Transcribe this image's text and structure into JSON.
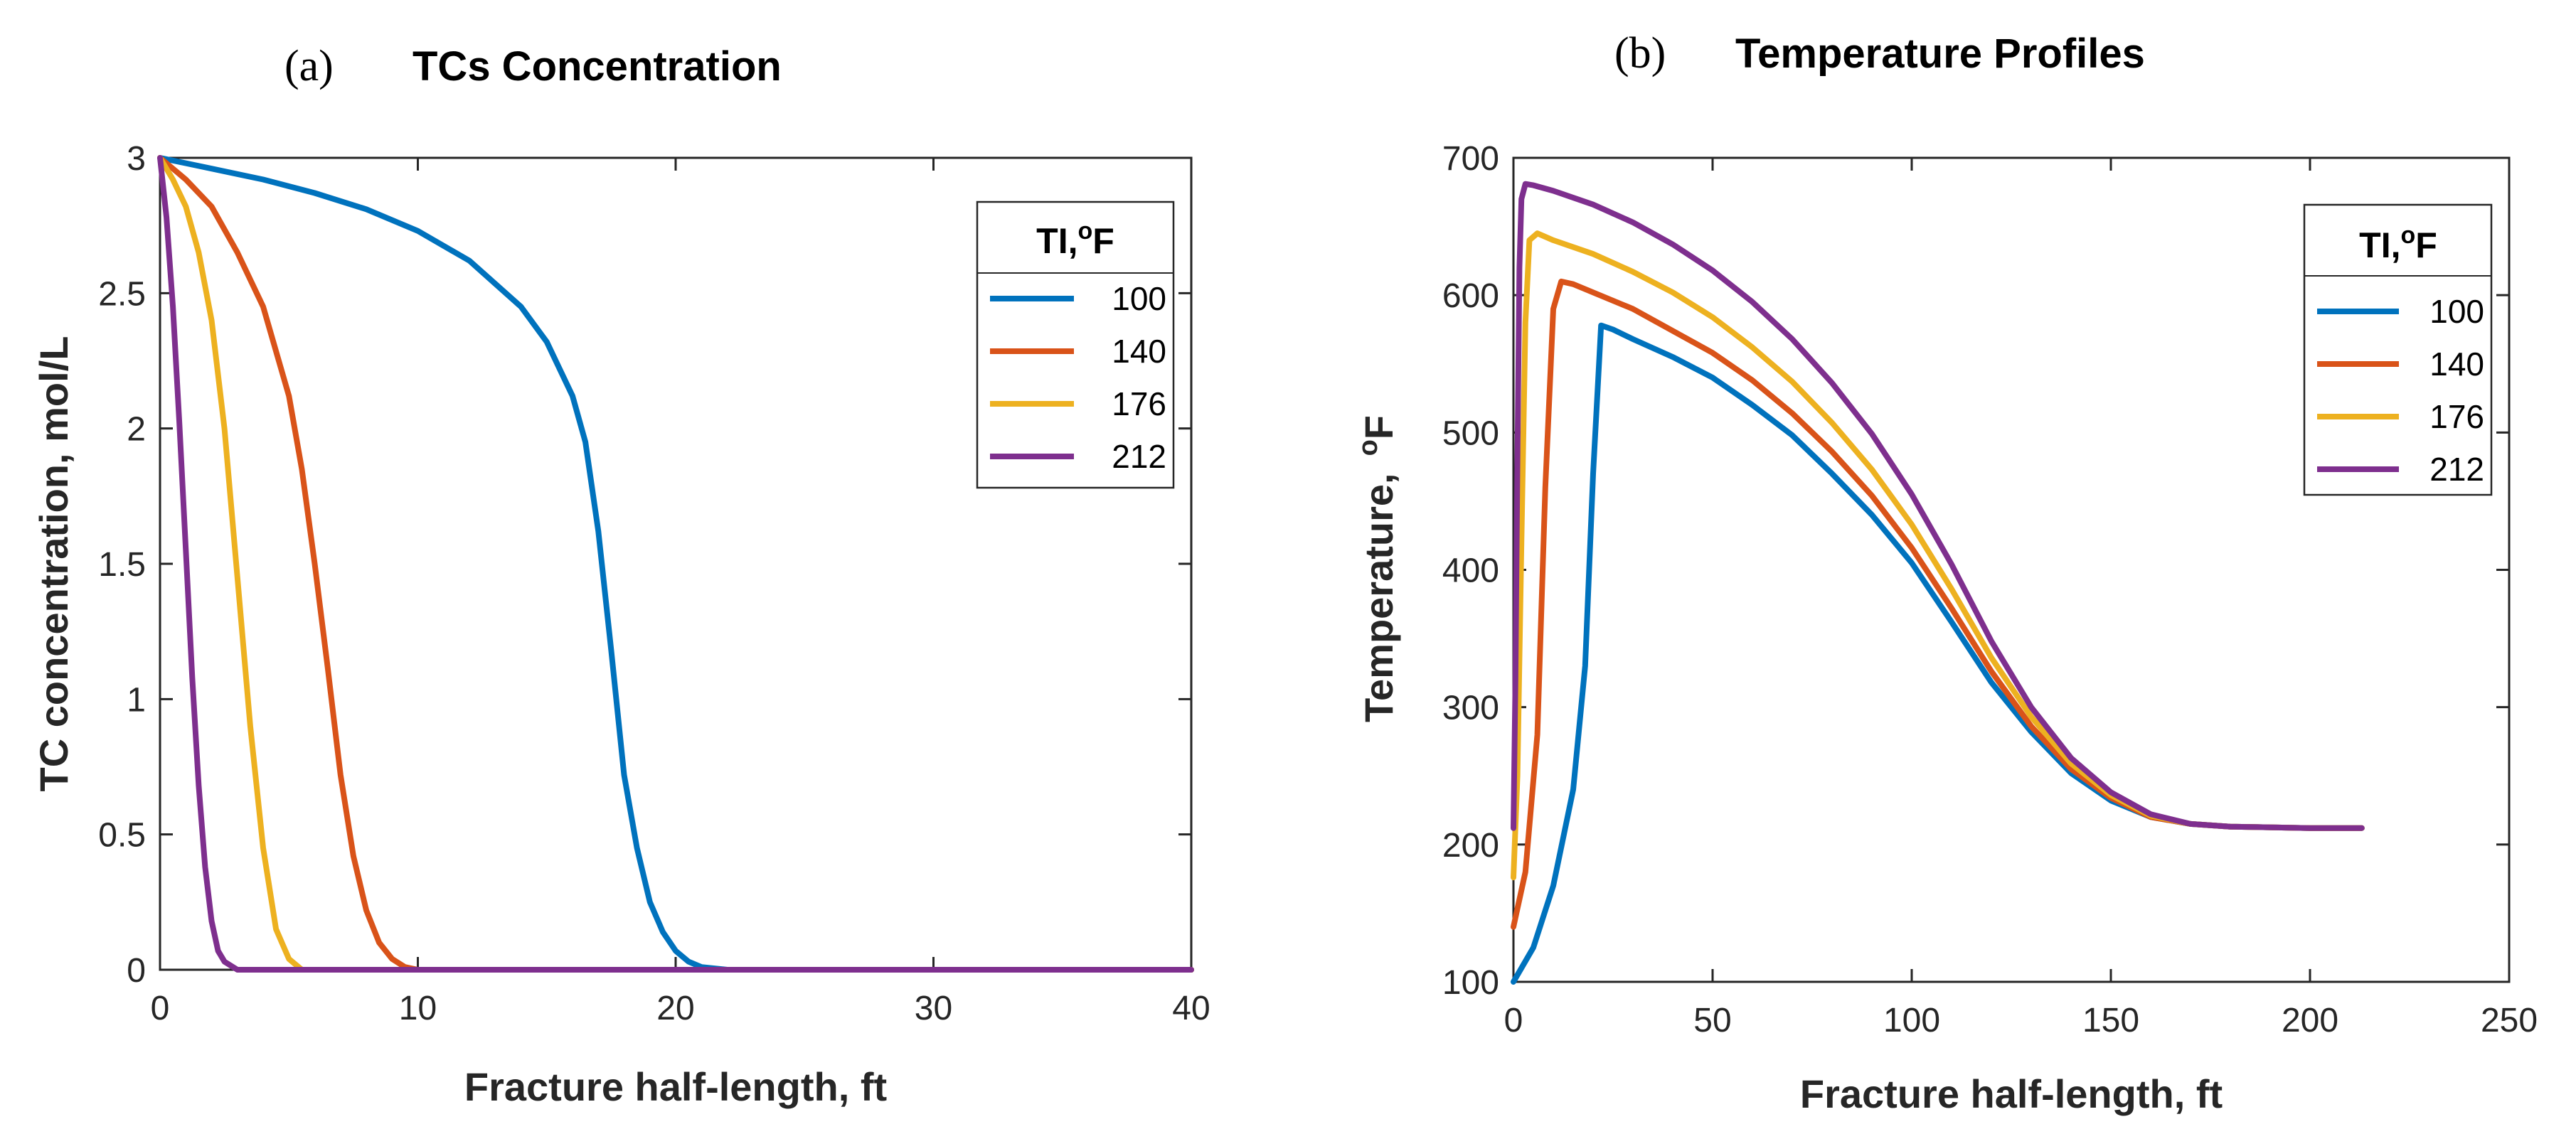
{
  "chart_data": [
    {
      "panel": "(a)",
      "type": "line",
      "title": "TCs Concentration",
      "xlabel": "Fracture half-length, ft",
      "ylabel": "TC concentration, mol/L",
      "xlim": [
        0,
        40
      ],
      "ylim": [
        0,
        3
      ],
      "xticks": [
        0,
        10,
        20,
        30,
        40
      ],
      "yticks": [
        0,
        0.5,
        1,
        1.5,
        2,
        2.5,
        3
      ],
      "legend": {
        "title": "TI,",
        "title_sup": "o",
        "title_unit": "F",
        "placement": "top-right"
      },
      "series": [
        {
          "name": "100",
          "color": "#0072BD",
          "x": [
            0,
            2,
            4,
            6,
            8,
            10,
            12,
            14,
            15,
            16,
            16.5,
            17,
            17.5,
            18,
            18.5,
            19,
            19.5,
            20,
            20.5,
            21,
            22,
            40
          ],
          "y": [
            3,
            2.96,
            2.92,
            2.87,
            2.81,
            2.73,
            2.62,
            2.45,
            2.32,
            2.12,
            1.95,
            1.62,
            1.18,
            0.72,
            0.45,
            0.25,
            0.14,
            0.07,
            0.03,
            0.01,
            0,
            0
          ]
        },
        {
          "name": "140",
          "color": "#D95319",
          "x": [
            0,
            1,
            2,
            3,
            4,
            5,
            5.5,
            6,
            6.5,
            7,
            7.5,
            8,
            8.5,
            9,
            9.5,
            10,
            40
          ],
          "y": [
            3,
            2.92,
            2.82,
            2.65,
            2.45,
            2.12,
            1.85,
            1.5,
            1.12,
            0.72,
            0.42,
            0.22,
            0.1,
            0.04,
            0.01,
            0,
            0
          ]
        },
        {
          "name": "176",
          "color": "#EDB120",
          "x": [
            0,
            0.5,
            1,
            1.5,
            2,
            2.5,
            3,
            3.5,
            4,
            4.5,
            5,
            5.5,
            40
          ],
          "y": [
            3,
            2.92,
            2.82,
            2.65,
            2.4,
            2.0,
            1.45,
            0.9,
            0.45,
            0.15,
            0.04,
            0,
            0
          ]
        },
        {
          "name": "212",
          "color": "#7E2F8E",
          "x": [
            0,
            0.25,
            0.5,
            0.75,
            1,
            1.25,
            1.5,
            1.75,
            2,
            2.25,
            2.5,
            3,
            40
          ],
          "y": [
            3,
            2.78,
            2.45,
            2.02,
            1.55,
            1.08,
            0.68,
            0.38,
            0.18,
            0.07,
            0.03,
            0,
            0
          ]
        }
      ]
    },
    {
      "panel": "(b)",
      "type": "line",
      "title": "Temperature Profiles",
      "xlabel": "Fracture half-length, ft",
      "ylabel": "Temperature,",
      "ylabel_sup": "o",
      "ylabel_unit": "F",
      "xlim": [
        0,
        250
      ],
      "ylim": [
        100,
        700
      ],
      "xticks": [
        0,
        50,
        100,
        150,
        200,
        250
      ],
      "yticks": [
        100,
        200,
        300,
        400,
        500,
        600,
        700
      ],
      "legend": {
        "title": "TI,",
        "title_sup": "o",
        "title_unit": "F",
        "placement": "top-right"
      },
      "series": [
        {
          "name": "100",
          "color": "#0072BD",
          "x": [
            0,
            5,
            10,
            15,
            18,
            20,
            22,
            25,
            30,
            40,
            50,
            60,
            70,
            80,
            90,
            100,
            110,
            120,
            130,
            140,
            150,
            160,
            170,
            180,
            200,
            213
          ],
          "y": [
            100,
            125,
            170,
            240,
            330,
            470,
            578,
            575,
            568,
            555,
            540,
            520,
            498,
            470,
            440,
            405,
            362,
            318,
            282,
            252,
            232,
            220,
            215,
            213,
            212,
            212
          ]
        },
        {
          "name": "140",
          "color": "#D95319",
          "x": [
            0,
            3,
            6,
            8,
            10,
            12,
            15,
            20,
            30,
            40,
            50,
            60,
            70,
            80,
            90,
            100,
            110,
            120,
            130,
            140,
            150,
            160,
            170,
            180,
            200,
            213
          ],
          "y": [
            140,
            180,
            280,
            460,
            590,
            610,
            608,
            602,
            590,
            574,
            558,
            538,
            514,
            486,
            454,
            416,
            372,
            326,
            286,
            255,
            234,
            220,
            215,
            213,
            212,
            212
          ]
        },
        {
          "name": "176",
          "color": "#EDB120",
          "x": [
            0,
            1,
            2,
            3,
            4,
            6,
            10,
            20,
            30,
            40,
            50,
            60,
            70,
            80,
            90,
            100,
            110,
            120,
            130,
            140,
            150,
            160,
            170,
            180,
            200,
            213
          ],
          "y": [
            176,
            250,
            420,
            580,
            640,
            645,
            640,
            630,
            617,
            602,
            584,
            562,
            537,
            507,
            473,
            433,
            386,
            336,
            293,
            259,
            236,
            221,
            215,
            213,
            212,
            212
          ]
        },
        {
          "name": "212",
          "color": "#7E2F8E",
          "x": [
            0,
            0.5,
            1,
            1.5,
            2,
            3,
            5,
            10,
            20,
            30,
            40,
            50,
            60,
            70,
            80,
            90,
            100,
            110,
            120,
            130,
            140,
            150,
            160,
            170,
            180,
            200,
            213
          ],
          "y": [
            212,
            320,
            480,
            620,
            670,
            681,
            680,
            676,
            666,
            653,
            637,
            618,
            595,
            568,
            536,
            499,
            455,
            404,
            348,
            300,
            263,
            238,
            222,
            215,
            213,
            212,
            212
          ]
        }
      ]
    }
  ]
}
